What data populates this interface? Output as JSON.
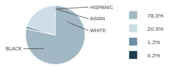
{
  "chart_data": {
    "type": "pie",
    "categories": [
      "BLACK",
      "WHITE",
      "ASIAN",
      "HISPANIC"
    ],
    "values": [
      78.3,
      20.3,
      1.2,
      0.2
    ],
    "value_labels": [
      "78.3%",
      "20.3%",
      "1.2%",
      "0.2%"
    ],
    "colors": [
      "#a2b8c4",
      "#ccdde6",
      "#6b8fa3",
      "#1e3d52"
    ],
    "legend": "right"
  }
}
